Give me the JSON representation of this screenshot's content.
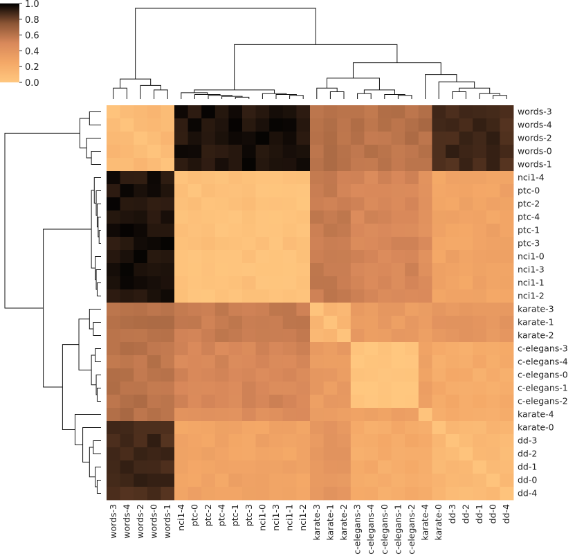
{
  "chart_data": {
    "type": "heatmap",
    "title": "",
    "xlabel": "",
    "ylabel": "",
    "colormap": "copper_r",
    "colormap_stops": [
      "#ffc77f",
      "#f4a867",
      "#d8885a",
      "#8a5434",
      "#000000"
    ],
    "colorbar": {
      "range": [
        0.0,
        1.0
      ],
      "ticks": [
        "0.0",
        "0.2",
        "0.4",
        "0.6",
        "0.8",
        "1.0"
      ],
      "placement": "top-left"
    },
    "dendrograms": [
      "top",
      "left"
    ],
    "row_labels": [
      "words-3",
      "words-4",
      "words-2",
      "words-0",
      "words-1",
      "nci1-4",
      "ptc-0",
      "ptc-2",
      "ptc-4",
      "ptc-1",
      "ptc-3",
      "nci1-0",
      "nci1-3",
      "nci1-1",
      "nci1-2",
      "karate-3",
      "karate-1",
      "karate-2",
      "c-elegans-3",
      "c-elegans-4",
      "c-elegans-0",
      "c-elegans-1",
      "c-elegans-2",
      "karate-4",
      "karate-0",
      "dd-3",
      "dd-2",
      "dd-1",
      "dd-0",
      "dd-4"
    ],
    "col_labels": [
      "words-3",
      "words-4",
      "words-2",
      "words-0",
      "words-1",
      "nci1-4",
      "ptc-0",
      "ptc-2",
      "ptc-4",
      "ptc-1",
      "ptc-3",
      "nci1-0",
      "nci1-3",
      "nci1-1",
      "nci1-2",
      "karate-3",
      "karate-1",
      "karate-2",
      "c-elegans-3",
      "c-elegans-4",
      "c-elegans-0",
      "c-elegans-1",
      "c-elegans-2",
      "karate-4",
      "karate-0",
      "dd-3",
      "dd-2",
      "dd-1",
      "dd-0",
      "dd-4"
    ],
    "block_values": {
      "groups": [
        "words",
        "nci_ptc",
        "karate_mid",
        "celegans",
        "karate4",
        "karate0_dd"
      ],
      "matrix": [
        [
          0.12,
          0.95,
          0.6,
          0.6,
          0.62,
          0.88
        ],
        [
          0.95,
          0.05,
          0.55,
          0.5,
          0.45,
          0.28
        ],
        [
          0.6,
          0.55,
          0.15,
          0.35,
          0.3,
          0.38
        ],
        [
          0.6,
          0.5,
          0.35,
          0.02,
          0.3,
          0.22
        ],
        [
          0.62,
          0.45,
          0.3,
          0.3,
          0.04,
          0.2
        ],
        [
          0.88,
          0.28,
          0.38,
          0.22,
          0.2,
          0.12
        ]
      ]
    }
  }
}
